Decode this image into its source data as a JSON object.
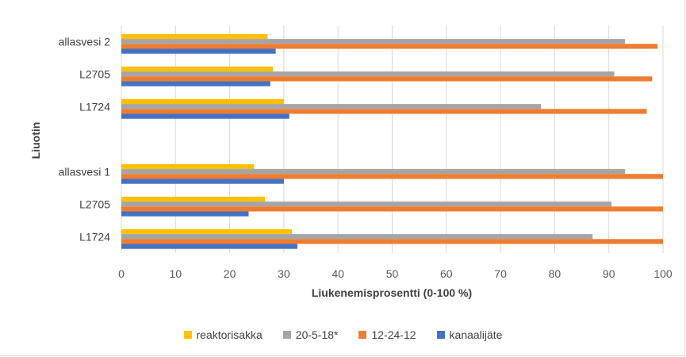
{
  "chart_data": {
    "type": "bar",
    "orientation": "horizontal",
    "title": "",
    "xlabel": "Liukenemisprosentti (0-100 %)",
    "ylabel": "Liuotin",
    "xlim": [
      0,
      100
    ],
    "xticks": [
      0,
      10,
      20,
      30,
      40,
      50,
      60,
      70,
      80,
      90,
      100
    ],
    "grid": true,
    "legend_position": "bottom",
    "categories": [
      "allasvesi 2",
      "L2705",
      "L1724",
      "",
      "allasvesi 1",
      "L2705",
      "L1724"
    ],
    "series": [
      {
        "name": "reaktorisakka",
        "color": "#FFC000",
        "values": [
          27,
          28,
          30,
          null,
          24.5,
          26.5,
          31.5
        ]
      },
      {
        "name": "20-5-18*",
        "color": "#A5A5A5",
        "values": [
          93,
          91,
          77.5,
          null,
          93,
          90.5,
          87
        ]
      },
      {
        "name": "12-24-12",
        "color": "#ED7D31",
        "values": [
          99,
          98,
          97,
          null,
          100,
          100,
          100
        ]
      },
      {
        "name": "kanaalijäte",
        "color": "#4472C4",
        "values": [
          28.5,
          27.5,
          31,
          null,
          30,
          23.5,
          32.5
        ]
      }
    ]
  }
}
